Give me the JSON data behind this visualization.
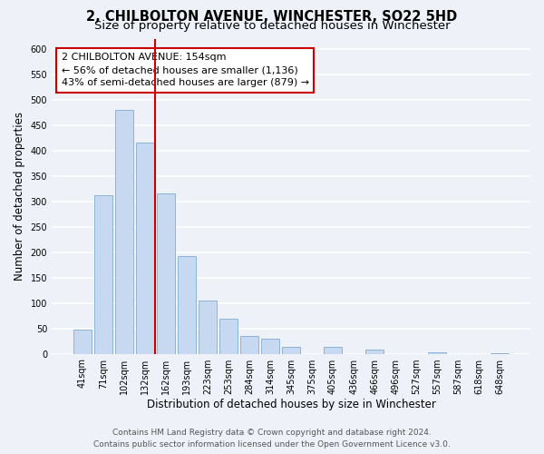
{
  "title": "2, CHILBOLTON AVENUE, WINCHESTER, SO22 5HD",
  "subtitle": "Size of property relative to detached houses in Winchester",
  "xlabel": "Distribution of detached houses by size in Winchester",
  "ylabel": "Number of detached properties",
  "bar_labels": [
    "41sqm",
    "71sqm",
    "102sqm",
    "132sqm",
    "162sqm",
    "193sqm",
    "223sqm",
    "253sqm",
    "284sqm",
    "314sqm",
    "345sqm",
    "375sqm",
    "405sqm",
    "436sqm",
    "466sqm",
    "496sqm",
    "527sqm",
    "557sqm",
    "587sqm",
    "618sqm",
    "648sqm"
  ],
  "bar_values": [
    47,
    311,
    480,
    415,
    315,
    192,
    105,
    69,
    35,
    30,
    14,
    0,
    14,
    0,
    8,
    0,
    0,
    2,
    0,
    0,
    1
  ],
  "bar_color": "#c6d9f0",
  "bar_edge_color": "#8ab4d8",
  "highlight_line_color": "#cc0000",
  "ylim": [
    0,
    620
  ],
  "yticks": [
    0,
    50,
    100,
    150,
    200,
    250,
    300,
    350,
    400,
    450,
    500,
    550,
    600
  ],
  "annotation_title": "2 CHILBOLTON AVENUE: 154sqm",
  "annotation_line1": "← 56% of detached houses are smaller (1,136)",
  "annotation_line2": "43% of semi-detached houses are larger (879) →",
  "annotation_box_color": "#ffffff",
  "annotation_box_edge_color": "#cc0000",
  "footer_line1": "Contains HM Land Registry data © Crown copyright and database right 2024.",
  "footer_line2": "Contains public sector information licensed under the Open Government Licence v3.0.",
  "background_color": "#eef2f8",
  "grid_color": "#ffffff",
  "title_fontsize": 10.5,
  "subtitle_fontsize": 9.5,
  "axis_label_fontsize": 8.5,
  "tick_fontsize": 7,
  "annotation_fontsize": 8,
  "footer_fontsize": 6.5
}
